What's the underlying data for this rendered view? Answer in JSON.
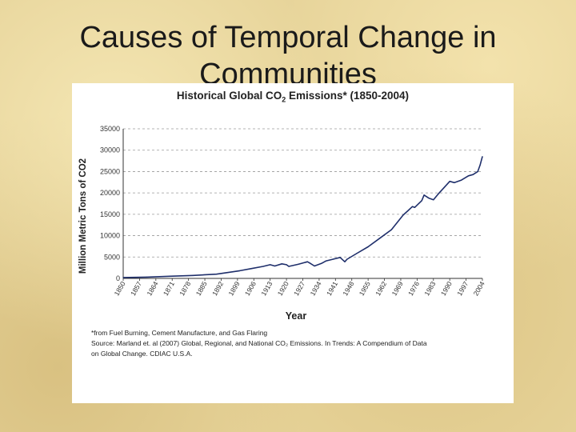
{
  "slide": {
    "title_line1": "Causes of Temporal Change in",
    "title_line2": "Communities"
  },
  "chart_data": {
    "type": "line",
    "title": "Historical Global CO2 Emissions* (1850-2004)",
    "title_parts": [
      "Historical Global CO",
      "2",
      " Emissions* (1850-2004)"
    ],
    "xlabel": "Year",
    "ylabel": "Million Metric Tons of CO2",
    "xlim": [
      1850,
      2004
    ],
    "ylim": [
      0,
      35000
    ],
    "yticks": [
      0,
      5000,
      10000,
      15000,
      20000,
      25000,
      30000,
      35000
    ],
    "xtick_labels": [
      "1850",
      "1857",
      "1864",
      "1871",
      "1878",
      "1885",
      "1892",
      "1899",
      "1906",
      "1913",
      "1920",
      "1927",
      "1934",
      "1941",
      "1948",
      "1955",
      "1962",
      "1969",
      "1976",
      "1983",
      "1990",
      "1997",
      "2004"
    ],
    "grid": true,
    "line_color": "#1f2f6b",
    "series": [
      {
        "name": "CO2 emissions",
        "x": [
          1850,
          1860,
          1870,
          1880,
          1890,
          1900,
          1905,
          1910,
          1913,
          1915,
          1918,
          1920,
          1921,
          1925,
          1929,
          1930,
          1932,
          1935,
          1937,
          1940,
          1943,
          1945,
          1946,
          1950,
          1955,
          1960,
          1965,
          1970,
          1972,
          1974,
          1975,
          1978,
          1979,
          1981,
          1983,
          1985,
          1988,
          1990,
          1992,
          1995,
          1998,
          2000,
          2002,
          2003,
          2004
        ],
        "y": [
          200,
          300,
          500,
          700,
          1000,
          1800,
          2300,
          2800,
          3200,
          2900,
          3400,
          3200,
          2800,
          3300,
          3900,
          3600,
          2900,
          3500,
          4100,
          4500,
          4900,
          3900,
          4500,
          5800,
          7400,
          9400,
          11400,
          14800,
          15800,
          16800,
          16600,
          18200,
          19500,
          18800,
          18400,
          19700,
          21500,
          22700,
          22400,
          23000,
          24000,
          24300,
          25000,
          26500,
          28500
        ]
      }
    ]
  },
  "notes": {
    "line1": "*from Fuel Burning, Cement Manufacture, and Gas Flaring",
    "line2": "Source: Marland et. al (2007) Global, Regional, and National CO₂ Emissions. In Trends: A Compendium of Data",
    "line3": "on Global Change. CDIAC U.S.A."
  }
}
